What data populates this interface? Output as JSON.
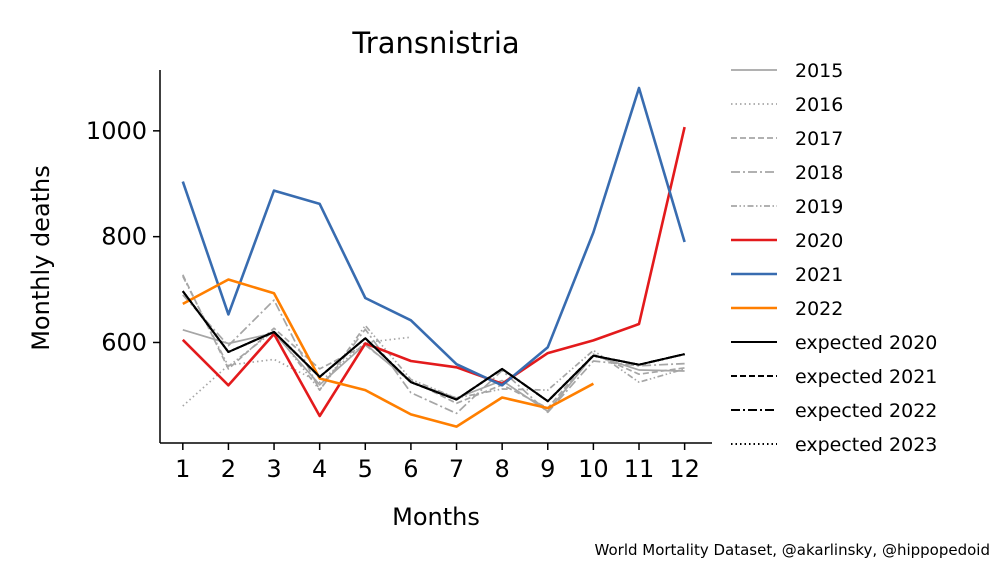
{
  "chart_data": {
    "type": "line",
    "title": "Transnistria",
    "xlabel": "Months",
    "ylabel": "Monthly deaths",
    "x": [
      1,
      2,
      3,
      4,
      5,
      6,
      7,
      8,
      9,
      10,
      11,
      12
    ],
    "xticks": [
      "1",
      "2",
      "3",
      "4",
      "5",
      "6",
      "7",
      "8",
      "9",
      "10",
      "11",
      "12"
    ],
    "yticks": [
      600,
      800,
      1000
    ],
    "ylim": [
      410,
      1115
    ],
    "xlim": [
      0.5,
      12.6
    ],
    "grid": false,
    "legend_position": "right, outside plot",
    "series": [
      {
        "name": "2015",
        "color": "#a6a6a6",
        "dash": "solid",
        "values": [
          624,
          598,
          618,
          520,
          597,
          525,
          495,
          528,
          470,
          576,
          548,
          546
        ]
      },
      {
        "name": "2016",
        "color": "#a6a6a6",
        "dash": "dotted",
        "values": [
          480,
          557,
          568,
          525,
          600,
          610,
          null,
          null,
          null,
          null,
          null,
          null
        ]
      },
      {
        "name": "2017",
        "color": "#a6a6a6",
        "dash": "dashed",
        "values": [
          728,
          550,
          627,
          550,
          595,
          528,
          485,
          520,
          476,
          578,
          540,
          552
        ]
      },
      {
        "name": "2018",
        "color": "#a6a6a6",
        "dash": "dashdot",
        "values": [
          690,
          594,
          680,
          510,
          625,
          505,
          466,
          547,
          468,
          565,
          556,
          560
        ]
      },
      {
        "name": "2019",
        "color": "#a6a6a6",
        "dash": "dashdotdot",
        "values": [
          725,
          555,
          622,
          510,
          632,
          530,
          495,
          512,
          510,
          585,
          525,
          550
        ]
      },
      {
        "name": "2020",
        "color": "#e31a1c",
        "dash": "solid",
        "values": [
          605,
          519,
          616,
          461,
          598,
          565,
          553,
          522,
          580,
          604,
          635,
          1007
        ]
      },
      {
        "name": "2021",
        "color": "#386cb0",
        "dash": "solid",
        "values": [
          904,
          653,
          887,
          862,
          684,
          642,
          559,
          519,
          591,
          808,
          1081,
          790
        ]
      },
      {
        "name": "2022",
        "color": "#ff7f00",
        "dash": "solid",
        "values": [
          673,
          719,
          693,
          532,
          510,
          464,
          441,
          496,
          476,
          522,
          null,
          null
        ]
      },
      {
        "name": "expected 2020",
        "color": "#000000",
        "dash": "solid",
        "values": [
          697,
          582,
          620,
          535,
          608,
          525,
          492,
          550,
          489,
          575,
          558,
          578
        ]
      },
      {
        "name": "expected 2021",
        "color": "#000000",
        "dash": "dashed",
        "values": [
          697,
          582,
          620,
          535,
          608,
          525,
          492,
          550,
          489,
          575,
          558,
          578
        ]
      },
      {
        "name": "expected 2022",
        "color": "#000000",
        "dash": "dashdot",
        "values": [
          697,
          582,
          620,
          535,
          608,
          525,
          492,
          550,
          489,
          575,
          558,
          578
        ]
      },
      {
        "name": "expected 2023",
        "color": "#000000",
        "dash": "dotted",
        "values": [
          697,
          582,
          620,
          535,
          608,
          525,
          492,
          550,
          489,
          575,
          558,
          578
        ]
      }
    ]
  },
  "credit": "World Mortality Dataset, @akarlinsky, @hippopedoid"
}
